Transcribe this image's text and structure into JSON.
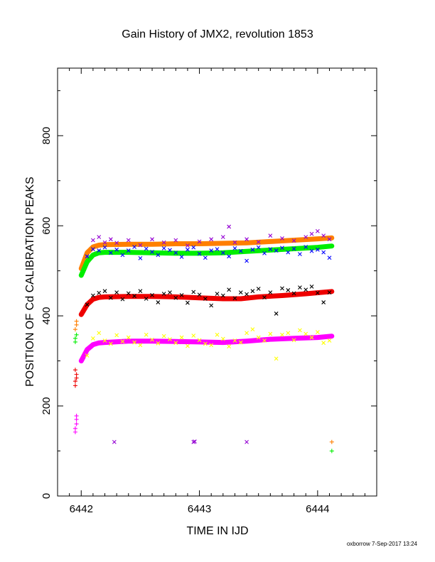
{
  "chart_data": {
    "type": "scatter",
    "title": "Gain History of JMX2, revolution 1853",
    "xlabel": "TIME IN IJD",
    "ylabel": "POSITION OF Cd CALIBRATION PEAKS",
    "xlim": [
      6441.8,
      6444.5
    ],
    "ylim": [
      0,
      950
    ],
    "x_ticks": [
      6442,
      6443,
      6444
    ],
    "y_ticks": [
      0,
      200,
      400,
      600,
      800
    ],
    "grid": false,
    "footer": "oxborrow  7-Sep-2017 13:24",
    "colors": {
      "orange": "#ff7f00",
      "green": "#00ee00",
      "blue": "#0000ff",
      "purple": "#9400d3",
      "red": "#ee0000",
      "black": "#000000",
      "magenta": "#ff00ff",
      "yellow": "#ffff00"
    },
    "series": [
      {
        "color": "orange",
        "marker": "line",
        "x": [
          6442.0,
          6442.05,
          6442.1,
          6442.15,
          6442.2,
          6442.4,
          6442.6,
          6442.8,
          6443.0,
          6443.2,
          6443.4,
          6443.6,
          6443.8,
          6444.0,
          6444.12
        ],
        "y": [
          505,
          540,
          553,
          557,
          558,
          559,
          559,
          560,
          560,
          561,
          562,
          565,
          568,
          571,
          573
        ]
      },
      {
        "color": "green",
        "marker": "line",
        "x": [
          6442.0,
          6442.05,
          6442.1,
          6442.15,
          6442.2,
          6442.4,
          6442.6,
          6442.8,
          6443.0,
          6443.2,
          6443.4,
          6443.6,
          6443.8,
          6444.0,
          6444.12
        ],
        "y": [
          490,
          520,
          535,
          540,
          541,
          541,
          540,
          539,
          539,
          540,
          543,
          546,
          549,
          552,
          555
        ]
      },
      {
        "color": "blue",
        "marker": "x",
        "x": [
          6442.05,
          6442.1,
          6442.15,
          6442.2,
          6442.25,
          6442.3,
          6442.35,
          6442.4,
          6442.45,
          6442.5,
          6442.55,
          6442.6,
          6442.65,
          6442.7,
          6442.75,
          6442.8,
          6442.85,
          6442.9,
          6442.95,
          6443.0,
          6443.05,
          6443.1,
          6443.15,
          6443.2,
          6443.25,
          6443.3,
          6443.35,
          6443.4,
          6443.45,
          6443.5,
          6443.55,
          6443.6,
          6443.65,
          6443.7,
          6443.75,
          6443.8,
          6443.85,
          6443.9,
          6443.95,
          6444.0,
          6444.05,
          6444.1
        ],
        "y": [
          532,
          548,
          545,
          552,
          540,
          547,
          535,
          545,
          553,
          528,
          549,
          542,
          535,
          550,
          546,
          540,
          531,
          547,
          552,
          538,
          529,
          545,
          548,
          540,
          532,
          550,
          544,
          522,
          547,
          552,
          539,
          548,
          545,
          551,
          541,
          549,
          537,
          553,
          544,
          547,
          541,
          529
        ]
      },
      {
        "color": "purple",
        "marker": "x",
        "x": [
          6442.1,
          6442.15,
          6442.2,
          6442.25,
          6442.3,
          6442.4,
          6442.5,
          6442.6,
          6442.7,
          6442.8,
          6442.9,
          6443.0,
          6443.1,
          6443.2,
          6443.25,
          6443.3,
          6443.4,
          6443.5,
          6443.6,
          6443.7,
          6443.8,
          6443.9,
          6443.95,
          6444.0,
          6444.05,
          6444.1
        ],
        "y": [
          568,
          575,
          563,
          570,
          562,
          568,
          557,
          570,
          563,
          568,
          556,
          565,
          570,
          575,
          598,
          563,
          570,
          564,
          578,
          572,
          567,
          575,
          582,
          588,
          578,
          570
        ]
      },
      {
        "color": "red",
        "marker": "line",
        "x": [
          6442.0,
          6442.05,
          6442.1,
          6442.15,
          6442.2,
          6442.4,
          6442.6,
          6442.8,
          6443.0,
          6443.2,
          6443.35,
          6443.5,
          6443.7,
          6443.9,
          6444.12
        ],
        "y": [
          403,
          425,
          437,
          441,
          442,
          443,
          443,
          442,
          440,
          438,
          438,
          442,
          445,
          449,
          454
        ]
      },
      {
        "color": "black",
        "marker": "x",
        "x": [
          6442.05,
          6442.1,
          6442.15,
          6442.2,
          6442.25,
          6442.3,
          6442.35,
          6442.4,
          6442.45,
          6442.5,
          6442.55,
          6442.6,
          6442.65,
          6442.7,
          6442.75,
          6442.8,
          6442.85,
          6442.9,
          6442.95,
          6443.0,
          6443.05,
          6443.1,
          6443.15,
          6443.2,
          6443.25,
          6443.3,
          6443.35,
          6443.4,
          6443.45,
          6443.5,
          6443.55,
          6443.6,
          6443.65,
          6443.7,
          6443.75,
          6443.8,
          6443.85,
          6443.9,
          6443.95,
          6444.0,
          6444.05,
          6444.1
        ],
        "y": [
          425,
          445,
          451,
          455,
          440,
          452,
          437,
          450,
          444,
          455,
          438,
          446,
          430,
          449,
          452,
          440,
          446,
          429,
          453,
          447,
          438,
          423,
          449,
          445,
          458,
          439,
          452,
          448,
          455,
          460,
          441,
          452,
          405,
          461,
          457,
          450,
          463,
          458,
          465,
          451,
          430,
          452
        ]
      },
      {
        "color": "magenta",
        "marker": "line",
        "x": [
          6442.0,
          6442.05,
          6442.1,
          6442.15,
          6442.2,
          6442.4,
          6442.6,
          6442.8,
          6443.0,
          6443.2,
          6443.4,
          6443.6,
          6443.8,
          6444.0,
          6444.12
        ],
        "y": [
          300,
          325,
          336,
          340,
          341,
          344,
          344,
          343,
          342,
          341,
          344,
          348,
          350,
          352,
          355
        ]
      },
      {
        "color": "yellow",
        "marker": "x",
        "x": [
          6442.05,
          6442.1,
          6442.15,
          6442.2,
          6442.25,
          6442.3,
          6442.35,
          6442.4,
          6442.45,
          6442.5,
          6442.55,
          6442.6,
          6442.65,
          6442.7,
          6442.75,
          6442.8,
          6442.85,
          6442.9,
          6442.95,
          6443.0,
          6443.05,
          6443.1,
          6443.15,
          6443.2,
          6443.25,
          6443.3,
          6443.35,
          6443.4,
          6443.45,
          6443.5,
          6443.55,
          6443.6,
          6443.65,
          6443.7,
          6443.75,
          6443.8,
          6443.85,
          6443.9,
          6443.95,
          6444.0,
          6444.05,
          6444.1
        ],
        "y": [
          312,
          350,
          362,
          345,
          338,
          357,
          343,
          352,
          341,
          335,
          358,
          347,
          339,
          355,
          348,
          340,
          352,
          333,
          356,
          346,
          338,
          335,
          358,
          349,
          332,
          345,
          341,
          362,
          370,
          352,
          345,
          360,
          305,
          358,
          362,
          346,
          368,
          360,
          352,
          364,
          340,
          345
        ]
      },
      {
        "color": "red",
        "marker": "plus",
        "x": [
          6441.95,
          6441.95,
          6441.96,
          6441.96,
          6441.95
        ],
        "y": [
          245,
          255,
          262,
          270,
          280
        ]
      },
      {
        "color": "magenta",
        "marker": "plus",
        "x": [
          6441.95,
          6441.95,
          6441.96,
          6441.96,
          6441.96
        ],
        "y": [
          142,
          150,
          160,
          170,
          178
        ]
      },
      {
        "color": "orange",
        "marker": "plus",
        "x": [
          6441.95,
          6441.96,
          6441.96,
          6444.12
        ],
        "y": [
          370,
          380,
          388,
          120
        ]
      },
      {
        "color": "green",
        "marker": "plus",
        "x": [
          6441.95,
          6441.95,
          6441.96,
          6444.12
        ],
        "y": [
          342,
          350,
          358,
          100
        ]
      },
      {
        "color": "purple",
        "marker": "x",
        "x": [
          6442.28,
          6442.95,
          6442.96,
          6443.4
        ],
        "y": [
          120,
          120,
          121,
          120
        ]
      }
    ]
  }
}
